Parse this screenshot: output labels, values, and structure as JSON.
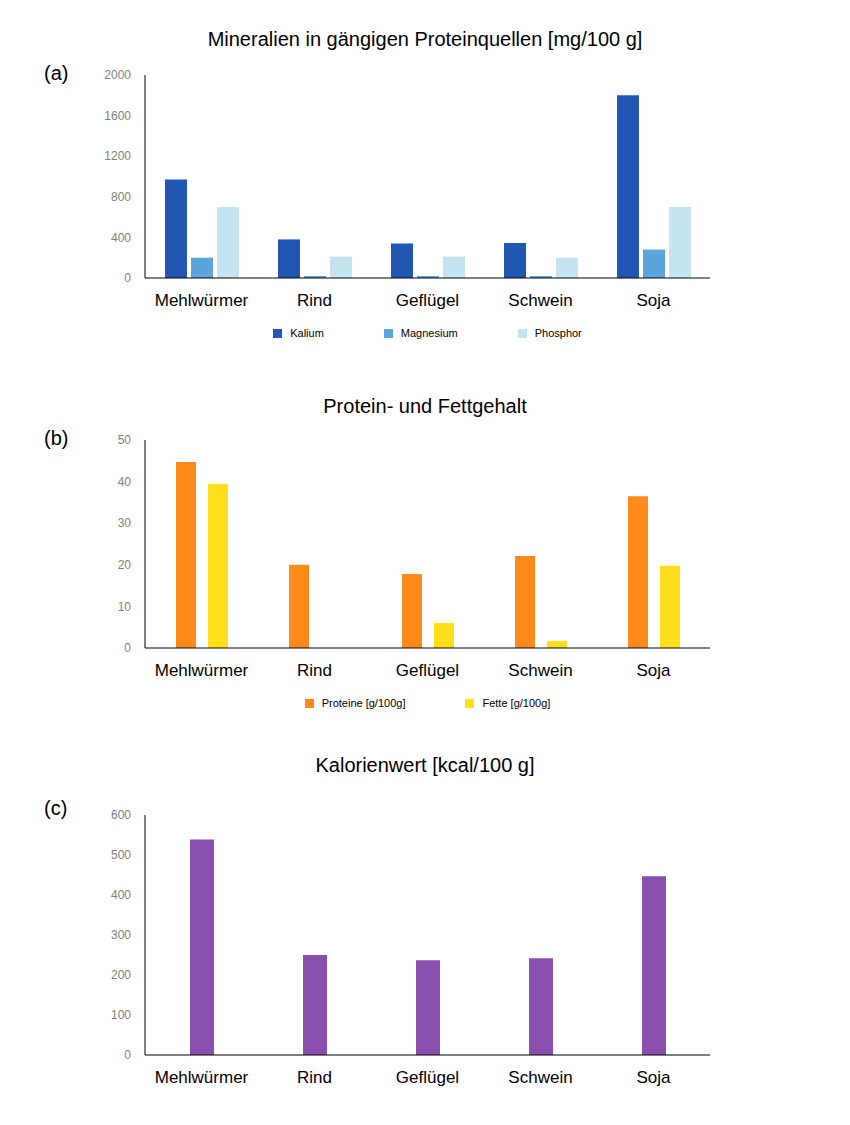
{
  "chart_data": [
    {
      "type": "bar",
      "title": "Mineralien in gängigen Proteinquellen [mg/100 g]",
      "annotations": [
        "(a)"
      ],
      "categories": [
        "Mehlwürmer",
        "Rind",
        "Geflügel",
        "Schwein",
        "Soja"
      ],
      "series": [
        {
          "name": "Kalium",
          "color": "#2156b3",
          "values": [
            970,
            380,
            340,
            345,
            1800
          ]
        },
        {
          "name": "Magnesium",
          "color": "#5ba4dc",
          "values": [
            200,
            20,
            20,
            20,
            280
          ]
        },
        {
          "name": "Phosphor",
          "color": "#c5e4ef",
          "values": [
            700,
            210,
            210,
            200,
            700
          ]
        }
      ],
      "ylim": [
        0,
        2000
      ],
      "yticks": [
        0,
        400,
        800,
        1200,
        1600,
        2000
      ],
      "grid": false,
      "legend": "bottom"
    },
    {
      "type": "bar",
      "title": "Protein- und Fettgehalt",
      "annotations": [
        "(b)"
      ],
      "categories": [
        "Mehlwürmer",
        "Rind",
        "Geflügel",
        "Schwein",
        "Soja"
      ],
      "series": [
        {
          "name": "Proteine [g/100g]",
          "color": "#ff8a1c",
          "values": [
            44.7,
            20,
            17.8,
            22.1,
            36.5
          ]
        },
        {
          "name": "Fette [g/100g]",
          "color": "#ffdf1a",
          "values": [
            39.5,
            null,
            6,
            1.7,
            19.8
          ]
        }
      ],
      "ylim": [
        0,
        50
      ],
      "yticks": [
        0,
        10,
        20,
        30,
        40,
        50
      ],
      "grid": false,
      "legend": "bottom"
    },
    {
      "type": "bar",
      "title": "Kalorienwert [kcal/100 g]",
      "annotations": [
        "(c)"
      ],
      "categories": [
        "Mehlwürmer",
        "Rind",
        "Geflügel",
        "Schwein",
        "Soja"
      ],
      "values": [
        539,
        250,
        237,
        242,
        447
      ],
      "color": "#8a4fad",
      "ylim": [
        0,
        600
      ],
      "yticks": [
        0,
        100,
        200,
        300,
        400,
        500,
        600
      ],
      "grid": false
    }
  ]
}
